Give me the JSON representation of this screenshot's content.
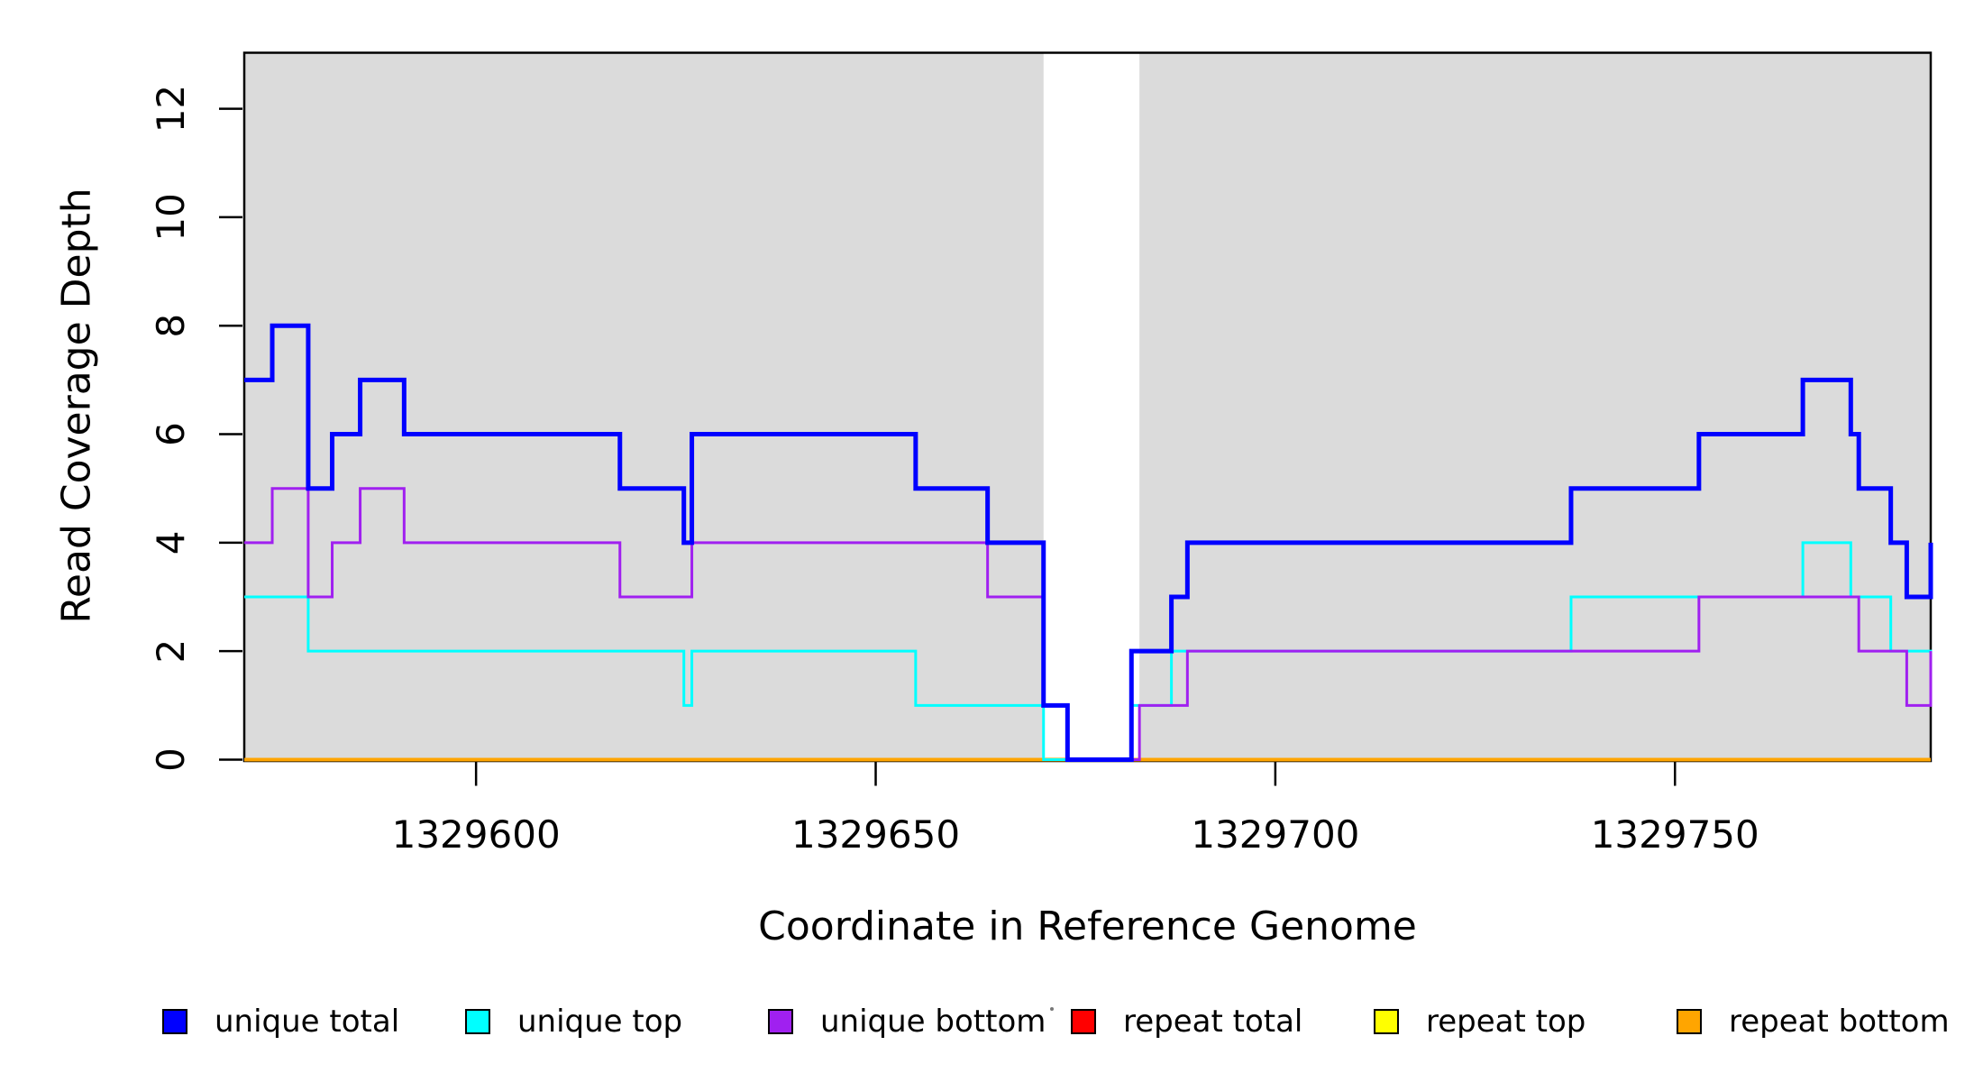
{
  "figure": {
    "background_color": "#ffffff",
    "frame_color": "#000000",
    "shaded_band_color": "#dbdbdb"
  },
  "chart_data": {
    "type": "line",
    "subtype": "step",
    "title": "",
    "xlabel": "Coordinate in Reference Genome",
    "ylabel": "Read Coverage Depth",
    "xlim": [
      1329571,
      1329782
    ],
    "ylim": [
      0,
      13.04
    ],
    "x_ticks": [
      1329600,
      1329650,
      1329700,
      1329750
    ],
    "y_ticks": [
      0,
      2,
      4,
      6,
      8,
      10,
      12
    ],
    "grid": false,
    "legend_position": "bottom",
    "shaded_regions": [
      {
        "x0": 1329571,
        "x1": 1329671,
        "color": "#dbdbdb"
      },
      {
        "x0": 1329683,
        "x1": 1329782,
        "color": "#dbdbdb"
      }
    ],
    "series": [
      {
        "id": "repeat-total",
        "name": "repeat total",
        "color": "#ff0000",
        "width": 4,
        "points": [
          [
            1329571,
            0
          ],
          [
            1329782,
            0
          ]
        ]
      },
      {
        "id": "repeat-top",
        "name": "repeat top",
        "color": "#ffff00",
        "width": 4,
        "points": [
          [
            1329571,
            0
          ],
          [
            1329782,
            0
          ]
        ]
      },
      {
        "id": "repeat-bottom",
        "name": "repeat bottom",
        "color": "#ffa500",
        "width": 4,
        "points": [
          [
            1329571,
            0
          ],
          [
            1329782,
            0
          ]
        ]
      },
      {
        "id": "unique-top",
        "name": "unique top",
        "color": "#00ffff",
        "width": 3,
        "points": [
          [
            1329571,
            3
          ],
          [
            1329579,
            2
          ],
          [
            1329626,
            1
          ],
          [
            1329627,
            2
          ],
          [
            1329655,
            1
          ],
          [
            1329671,
            0
          ],
          [
            1329682,
            1
          ],
          [
            1329687,
            2
          ],
          [
            1329737,
            3
          ],
          [
            1329766,
            4
          ],
          [
            1329772,
            3
          ],
          [
            1329777,
            2
          ],
          [
            1329782,
            1
          ]
        ]
      },
      {
        "id": "unique-bottom",
        "name": "unique bottom",
        "color": "#a020f0",
        "width": 3,
        "points": [
          [
            1329571,
            4
          ],
          [
            1329574.5,
            5
          ],
          [
            1329579,
            3
          ],
          [
            1329582,
            4
          ],
          [
            1329585.5,
            5
          ],
          [
            1329591,
            4
          ],
          [
            1329618,
            3
          ],
          [
            1329627,
            4
          ],
          [
            1329664,
            3
          ],
          [
            1329671,
            1
          ],
          [
            1329674,
            0
          ],
          [
            1329683,
            1
          ],
          [
            1329689,
            2
          ],
          [
            1329753,
            3
          ],
          [
            1329773,
            2
          ],
          [
            1329779,
            1
          ],
          [
            1329782,
            2
          ]
        ]
      },
      {
        "id": "unique-total",
        "name": "unique total",
        "color": "#0000ff",
        "width": 5,
        "points": [
          [
            1329571,
            7
          ],
          [
            1329574.5,
            8
          ],
          [
            1329579,
            5
          ],
          [
            1329582,
            6
          ],
          [
            1329585.5,
            7
          ],
          [
            1329591,
            6
          ],
          [
            1329618,
            5
          ],
          [
            1329626,
            4
          ],
          [
            1329627,
            6
          ],
          [
            1329655,
            5
          ],
          [
            1329664,
            4
          ],
          [
            1329671,
            1
          ],
          [
            1329674,
            0
          ],
          [
            1329682,
            2
          ],
          [
            1329687,
            3
          ],
          [
            1329689,
            4
          ],
          [
            1329737,
            5
          ],
          [
            1329753,
            6
          ],
          [
            1329766,
            7
          ],
          [
            1329772,
            6
          ],
          [
            1329773,
            5
          ],
          [
            1329777,
            4
          ],
          [
            1329779,
            3
          ],
          [
            1329782,
            4
          ]
        ]
      }
    ],
    "legend": [
      {
        "label": "unique total",
        "color": "#0000ff"
      },
      {
        "label": "unique top",
        "color": "#00ffff"
      },
      {
        "label": "unique bottom",
        "color": "#a020f0"
      },
      {
        "label": "repeat total",
        "color": "#ff0000"
      },
      {
        "label": "repeat top",
        "color": "#ffff00"
      },
      {
        "label": "repeat bottom",
        "color": "#ffa500"
      }
    ]
  }
}
